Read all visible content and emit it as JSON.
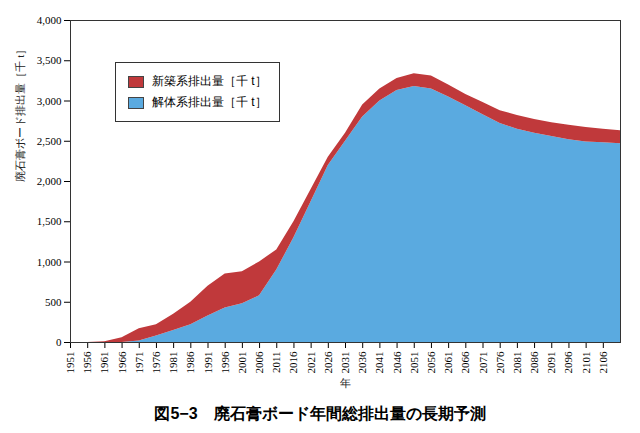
{
  "chart_data": {
    "type": "area",
    "title": "図5−3　廃石膏ボード年間総排出量の長期予測",
    "x_label": "年",
    "y_label": "廃石膏ボード排出量［千 t］",
    "stacked": true,
    "legend": "upper left",
    "grid": false,
    "x": [
      1951,
      1956,
      1961,
      1966,
      1971,
      1976,
      1981,
      1986,
      1991,
      1996,
      2001,
      2006,
      2011,
      2016,
      2021,
      2026,
      2031,
      2036,
      2041,
      2046,
      2051,
      2056,
      2061,
      2066,
      2071,
      2076,
      2081,
      2086,
      2091,
      2096,
      2101,
      2106,
      2111
    ],
    "series": [
      {
        "name": "新築系排出量［千 t］",
        "color": "#c0393b",
        "values": [
          0,
          0,
          10,
          60,
          150,
          140,
          200,
          280,
          370,
          420,
          400,
          420,
          250,
          200,
          150,
          100,
          100,
          150,
          150,
          150,
          160,
          160,
          150,
          140,
          150,
          160,
          170,
          170,
          170,
          180,
          180,
          170,
          160
        ]
      },
      {
        "name": "解体系排出量［千 t］",
        "color": "#5aaae0",
        "values": [
          0,
          0,
          0,
          0,
          20,
          80,
          150,
          220,
          330,
          430,
          480,
          580,
          900,
          1300,
          1750,
          2200,
          2500,
          2800,
          3000,
          3130,
          3180,
          3150,
          3050,
          2940,
          2830,
          2720,
          2650,
          2600,
          2560,
          2520,
          2490,
          2480,
          2470
        ]
      }
    ],
    "xlim": [
      1951,
      2111
    ],
    "xticks": [
      1951,
      1956,
      1961,
      1966,
      1971,
      1976,
      1981,
      1986,
      1991,
      1996,
      2001,
      2006,
      2011,
      2016,
      2021,
      2026,
      2031,
      2036,
      2041,
      2046,
      2051,
      2056,
      2061,
      2066,
      2071,
      2076,
      2081,
      2086,
      2091,
      2096,
      2101,
      2106
    ],
    "ylim": [
      0,
      4000
    ],
    "yticks": [
      0,
      500,
      {
        "value": 1000,
        "label": "1,000"
      },
      {
        "value": 1500,
        "label": "1,500"
      },
      {
        "value": 2000,
        "label": "2,000"
      },
      {
        "value": 2500,
        "label": "2,500"
      },
      {
        "value": 3000,
        "label": "3,000"
      },
      {
        "value": 3500,
        "label": "3,500"
      },
      {
        "value": 4000,
        "label": "4,000"
      }
    ]
  }
}
